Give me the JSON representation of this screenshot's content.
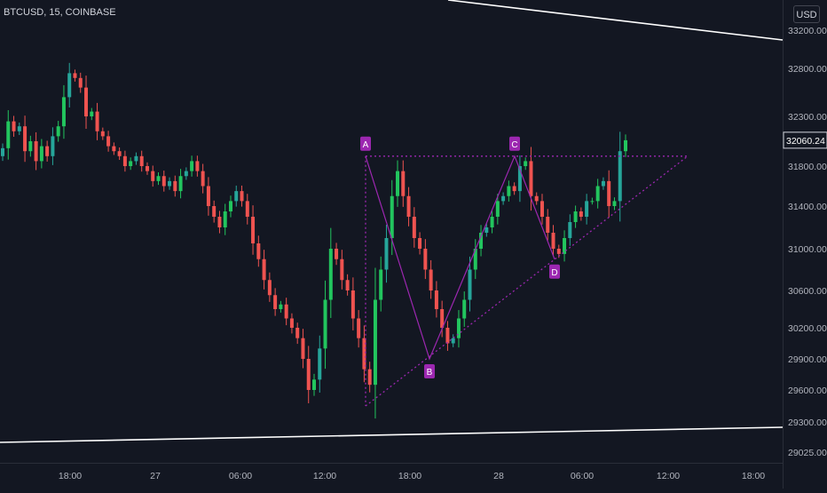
{
  "header": {
    "symbol": "BTCUSD, 15, COINBASE",
    "currency": "USD"
  },
  "chart_data": {
    "type": "candlestick",
    "symbol": "BTCUSD",
    "interval": "15",
    "exchange": "COINBASE",
    "y_axis": {
      "ticks": [
        29025,
        29300,
        29600,
        29900,
        30200,
        30600,
        31000,
        31400,
        31800,
        32300,
        32800,
        33200
      ],
      "labels": [
        "29025.00",
        "29300.00",
        "29600.00",
        "29900.00",
        "30200.00",
        "30600.00",
        "31000.00",
        "31400.00",
        "31800.00",
        "32300.00",
        "32800.00",
        "33200.00"
      ]
    },
    "x_axis": {
      "labels": [
        "18:00",
        "27",
        "06:00",
        "12:00",
        "18:00",
        "28",
        "06:00",
        "12:00",
        "18:00"
      ]
    },
    "current_price": {
      "label": "32060.24",
      "value": 32060.24
    },
    "colors": {
      "up": "#26a69a",
      "up_bright": "#22c55e",
      "down": "#ef5350",
      "pattern": "#9c27b0",
      "trend": "#ffffff",
      "background": "#131722"
    },
    "pattern_points": [
      {
        "label": "A",
        "price": 31900
      },
      {
        "label": "B",
        "price": 29900
      },
      {
        "label": "C",
        "price": 31900
      },
      {
        "label": "D",
        "price": 30900
      }
    ],
    "series": [
      {
        "name": "",
        "close": [
          31980,
          32250,
          32150,
          32200,
          31950,
          32050,
          31850,
          32000,
          31900,
          32100,
          32200,
          32500,
          32750,
          32700,
          32600,
          32300,
          32350,
          32150,
          32100,
          32000,
          31950,
          31900,
          31800,
          31850,
          31900,
          31800,
          31750,
          31650,
          31700,
          31600,
          31650,
          31550,
          31700,
          31750,
          31850,
          31750,
          31600,
          31400,
          31300,
          31200,
          31350,
          31450,
          31550,
          31450,
          31300,
          31050,
          30900,
          30700,
          30550,
          30400,
          30450,
          30300,
          30200,
          30100,
          29900,
          29600,
          29700,
          30000,
          30500,
          31000,
          30900,
          30700,
          30600,
          30300,
          30100,
          29800,
          29650,
          30500,
          30800,
          31100,
          31500,
          31750,
          31500,
          31300,
          31100,
          31000,
          30800,
          30600,
          30400,
          30200,
          30050,
          30100,
          30300,
          30500,
          30800,
          31000,
          31150,
          31200,
          31300,
          31450,
          31500,
          31600,
          31550,
          31800,
          31850,
          31500,
          31450,
          31300,
          31150,
          31000,
          30950,
          31100,
          31250,
          31350,
          31300,
          31450,
          31450,
          31600,
          31650,
          31400,
          31450,
          31950,
          32060
        ]
      }
    ]
  }
}
